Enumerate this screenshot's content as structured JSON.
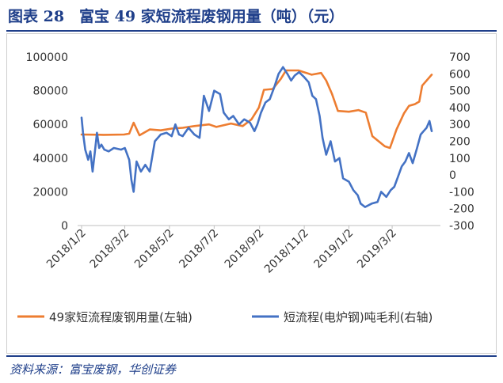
{
  "header": {
    "title": "图表 28　富宝 49 家短流程废钢用量（吨）（元）"
  },
  "footer": {
    "source": "资料来源：富宝废钢，华创证券"
  },
  "colors": {
    "steel_scrap": "#ed7d31",
    "profit": "#4472c4",
    "brand": "#1f3f8a"
  },
  "chart_data": {
    "type": "line",
    "title": "",
    "grid": false,
    "legend_position": "bottom",
    "x_ticks": [
      "2018/1/2",
      "2018/3/2",
      "2018/5/2",
      "2018/7/2",
      "2018/9/2",
      "2018/11/2",
      "2019/1/2",
      "2019/3/2"
    ],
    "x_range": [
      "2018-01-02",
      "2019-04-25"
    ],
    "left_axis": {
      "ylim": [
        0,
        100000
      ],
      "ticks": [
        "0",
        "20000",
        "40000",
        "60000",
        "80000",
        "100000"
      ]
    },
    "right_axis": {
      "ylim": [
        -300,
        700
      ],
      "ticks": [
        "-300",
        "-200",
        "-100",
        "0",
        "100",
        "200",
        "300",
        "400",
        "500",
        "600",
        "700"
      ]
    },
    "series": [
      {
        "name": "49家短流程废钢用量(左轴)",
        "axis": "left",
        "points": [
          [
            "2018-01-02",
            54000
          ],
          [
            "2018-02-01",
            53800
          ],
          [
            "2018-03-01",
            54000
          ],
          [
            "2018-03-08",
            54500
          ],
          [
            "2018-03-14",
            61000
          ],
          [
            "2018-03-22",
            53500
          ],
          [
            "2018-04-05",
            57000
          ],
          [
            "2018-04-20",
            56500
          ],
          [
            "2018-05-05",
            57500
          ],
          [
            "2018-05-20",
            58000
          ],
          [
            "2018-06-05",
            59000
          ],
          [
            "2018-06-25",
            60000
          ],
          [
            "2018-07-05",
            58500
          ],
          [
            "2018-07-25",
            60500
          ],
          [
            "2018-08-10",
            59000
          ],
          [
            "2018-08-22",
            63000
          ],
          [
            "2018-09-01",
            70000
          ],
          [
            "2018-09-08",
            80500
          ],
          [
            "2018-09-20",
            81000
          ],
          [
            "2018-10-01",
            87000
          ],
          [
            "2018-10-08",
            92000
          ],
          [
            "2018-10-25",
            92000
          ],
          [
            "2018-11-05",
            90500
          ],
          [
            "2018-11-12",
            89500
          ],
          [
            "2018-11-25",
            90500
          ],
          [
            "2018-12-02",
            86000
          ],
          [
            "2018-12-10",
            78000
          ],
          [
            "2018-12-18",
            68000
          ],
          [
            "2019-01-02",
            67500
          ],
          [
            "2019-01-15",
            68500
          ],
          [
            "2019-01-25",
            67000
          ],
          [
            "2019-02-03",
            53000
          ],
          [
            "2019-02-20",
            47000
          ],
          [
            "2019-02-27",
            46000
          ],
          [
            "2019-03-08",
            57000
          ],
          [
            "2019-03-18",
            66500
          ],
          [
            "2019-03-25",
            71000
          ],
          [
            "2019-04-02",
            72000
          ],
          [
            "2019-04-08",
            73500
          ],
          [
            "2019-04-12",
            83000
          ],
          [
            "2019-04-25",
            89500
          ]
        ]
      },
      {
        "name": "短流程(电炉钢)吨毛利(右轴)",
        "axis": "right",
        "points": [
          [
            "2018-01-02",
            340
          ],
          [
            "2018-01-04",
            250
          ],
          [
            "2018-01-07",
            150
          ],
          [
            "2018-01-09",
            120
          ],
          [
            "2018-01-11",
            90
          ],
          [
            "2018-01-14",
            140
          ],
          [
            "2018-01-17",
            20
          ],
          [
            "2018-01-20",
            130
          ],
          [
            "2018-01-23",
            250
          ],
          [
            "2018-01-26",
            160
          ],
          [
            "2018-01-29",
            180
          ],
          [
            "2018-02-02",
            150
          ],
          [
            "2018-02-08",
            140
          ],
          [
            "2018-02-15",
            160
          ],
          [
            "2018-02-25",
            150
          ],
          [
            "2018-03-02",
            160
          ],
          [
            "2018-03-08",
            90
          ],
          [
            "2018-03-11",
            -30
          ],
          [
            "2018-03-14",
            -100
          ],
          [
            "2018-03-18",
            80
          ],
          [
            "2018-03-24",
            20
          ],
          [
            "2018-03-30",
            60
          ],
          [
            "2018-04-05",
            20
          ],
          [
            "2018-04-12",
            200
          ],
          [
            "2018-04-20",
            240
          ],
          [
            "2018-04-28",
            250
          ],
          [
            "2018-05-05",
            230
          ],
          [
            "2018-05-10",
            300
          ],
          [
            "2018-05-15",
            240
          ],
          [
            "2018-05-20",
            230
          ],
          [
            "2018-05-28",
            280
          ],
          [
            "2018-06-05",
            240
          ],
          [
            "2018-06-12",
            220
          ],
          [
            "2018-06-18",
            470
          ],
          [
            "2018-06-25",
            380
          ],
          [
            "2018-07-02",
            500
          ],
          [
            "2018-07-10",
            480
          ],
          [
            "2018-07-15",
            370
          ],
          [
            "2018-07-22",
            330
          ],
          [
            "2018-07-28",
            350
          ],
          [
            "2018-08-05",
            300
          ],
          [
            "2018-08-12",
            330
          ],
          [
            "2018-08-20",
            310
          ],
          [
            "2018-08-26",
            260
          ],
          [
            "2018-08-30",
            300
          ],
          [
            "2018-09-04",
            370
          ],
          [
            "2018-09-10",
            430
          ],
          [
            "2018-09-16",
            450
          ],
          [
            "2018-09-22",
            520
          ],
          [
            "2018-09-28",
            600
          ],
          [
            "2018-10-04",
            640
          ],
          [
            "2018-10-10",
            600
          ],
          [
            "2018-10-15",
            560
          ],
          [
            "2018-10-20",
            590
          ],
          [
            "2018-10-26",
            610
          ],
          [
            "2018-11-02",
            580
          ],
          [
            "2018-11-08",
            550
          ],
          [
            "2018-11-13",
            470
          ],
          [
            "2018-11-18",
            450
          ],
          [
            "2018-11-23",
            350
          ],
          [
            "2018-11-27",
            220
          ],
          [
            "2018-12-02",
            120
          ],
          [
            "2018-12-08",
            200
          ],
          [
            "2018-12-14",
            80
          ],
          [
            "2018-12-20",
            100
          ],
          [
            "2018-12-25",
            -20
          ],
          [
            "2019-01-02",
            -40
          ],
          [
            "2019-01-08",
            -90
          ],
          [
            "2019-01-14",
            -120
          ],
          [
            "2019-01-18",
            -170
          ],
          [
            "2019-01-24",
            -190
          ],
          [
            "2019-02-02",
            -170
          ],
          [
            "2019-02-10",
            -160
          ],
          [
            "2019-02-15",
            -100
          ],
          [
            "2019-02-22",
            -130
          ],
          [
            "2019-02-28",
            -90
          ],
          [
            "2019-03-05",
            -70
          ],
          [
            "2019-03-10",
            -10
          ],
          [
            "2019-03-15",
            50
          ],
          [
            "2019-03-20",
            80
          ],
          [
            "2019-03-25",
            130
          ],
          [
            "2019-03-30",
            70
          ],
          [
            "2019-04-05",
            160
          ],
          [
            "2019-04-10",
            240
          ],
          [
            "2019-04-14",
            260
          ],
          [
            "2019-04-18",
            280
          ],
          [
            "2019-04-22",
            320
          ],
          [
            "2019-04-25",
            260
          ]
        ]
      }
    ]
  }
}
